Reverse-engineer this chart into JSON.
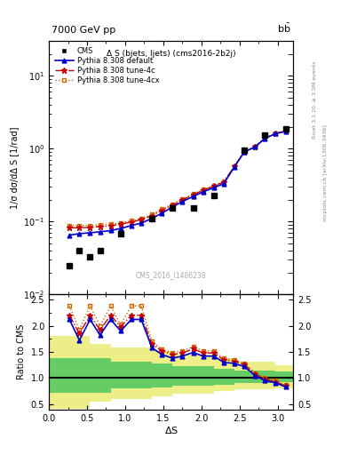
{
  "title_top": "7000 GeV pp",
  "title_top_right": "b$\\bar{b}$",
  "plot_title": "Δ S (bjets, ljets) (cms2016-2b2j)",
  "ylabel_main": "1/σ dσ/dΔ S [1/rad]",
  "xlabel": "ΔS",
  "ylabel_ratio": "Ratio to CMS",
  "right_label": "Rivet 3.1.10, ≥ 3.5M events",
  "right_label2": "mcplots.cern.ch [arXiv:1306.3436]",
  "watermark": "CMS_2016_I1486238",
  "cms_x": [
    0.27,
    0.4,
    0.54,
    0.67,
    0.94,
    1.35,
    1.62,
    1.89,
    2.16,
    2.56,
    2.83,
    3.1
  ],
  "cms_y": [
    0.025,
    0.04,
    0.033,
    0.04,
    0.068,
    0.11,
    0.155,
    0.155,
    0.23,
    0.95,
    1.55,
    1.85
  ],
  "default_x": [
    0.27,
    0.4,
    0.54,
    0.67,
    0.81,
    0.94,
    1.08,
    1.21,
    1.35,
    1.48,
    1.62,
    1.75,
    1.89,
    2.02,
    2.16,
    2.29,
    2.43,
    2.56,
    2.7,
    2.83,
    2.97,
    3.1
  ],
  "default_y": [
    0.065,
    0.068,
    0.07,
    0.072,
    0.075,
    0.08,
    0.088,
    0.095,
    0.11,
    0.13,
    0.158,
    0.188,
    0.22,
    0.255,
    0.29,
    0.33,
    0.56,
    0.9,
    1.05,
    1.38,
    1.6,
    1.72
  ],
  "tune4c_x": [
    0.27,
    0.4,
    0.54,
    0.67,
    0.81,
    0.94,
    1.08,
    1.21,
    1.35,
    1.48,
    1.62,
    1.75,
    1.89,
    2.02,
    2.16,
    2.29,
    2.43,
    2.56,
    2.7,
    2.83,
    2.97,
    3.1
  ],
  "tune4c_y": [
    0.082,
    0.082,
    0.083,
    0.085,
    0.087,
    0.092,
    0.098,
    0.106,
    0.12,
    0.142,
    0.168,
    0.198,
    0.232,
    0.268,
    0.305,
    0.348,
    0.57,
    0.91,
    1.06,
    1.39,
    1.61,
    1.74
  ],
  "tune4cx_x": [
    0.27,
    0.4,
    0.54,
    0.67,
    0.81,
    0.94,
    1.08,
    1.21,
    1.35,
    1.48,
    1.62,
    1.75,
    1.89,
    2.02,
    2.16,
    2.29,
    2.43,
    2.56,
    2.7,
    2.83,
    2.97,
    3.1
  ],
  "tune4cx_y": [
    0.088,
    0.088,
    0.088,
    0.09,
    0.092,
    0.096,
    0.102,
    0.11,
    0.125,
    0.147,
    0.173,
    0.203,
    0.237,
    0.273,
    0.31,
    0.353,
    0.573,
    0.915,
    1.065,
    1.4,
    1.62,
    1.75
  ],
  "ratio_default_x": [
    0.27,
    0.4,
    0.54,
    0.67,
    0.81,
    0.94,
    1.08,
    1.21,
    1.35,
    1.48,
    1.62,
    1.75,
    1.89,
    2.02,
    2.16,
    2.29,
    2.43,
    2.56,
    2.7,
    2.83,
    2.97,
    3.1
  ],
  "ratio_default_y": [
    2.12,
    1.72,
    2.12,
    1.82,
    2.12,
    1.9,
    2.12,
    2.12,
    1.58,
    1.45,
    1.38,
    1.42,
    1.49,
    1.42,
    1.42,
    1.3,
    1.28,
    1.22,
    1.05,
    0.95,
    0.91,
    0.83
  ],
  "ratio_tune4c_x": [
    0.27,
    0.4,
    0.54,
    0.67,
    0.81,
    0.94,
    1.08,
    1.21,
    1.35,
    1.48,
    1.62,
    1.75,
    1.89,
    2.02,
    2.16,
    2.29,
    2.43,
    2.56,
    2.7,
    2.83,
    2.97,
    3.1
  ],
  "ratio_tune4c_y": [
    2.2,
    1.85,
    2.2,
    1.92,
    2.2,
    1.98,
    2.2,
    2.2,
    1.65,
    1.52,
    1.45,
    1.48,
    1.56,
    1.48,
    1.48,
    1.35,
    1.32,
    1.26,
    1.08,
    0.98,
    0.93,
    0.85
  ],
  "ratio_tune4cx_x": [
    0.27,
    0.4,
    0.54,
    0.67,
    0.81,
    0.94,
    1.08,
    1.21,
    1.35,
    1.48,
    1.62,
    1.75,
    1.89,
    2.02,
    2.16,
    2.29,
    2.43,
    2.56,
    2.7,
    2.83,
    2.97,
    3.1
  ],
  "ratio_tune4cx_y": [
    2.38,
    1.92,
    2.38,
    2.0,
    2.38,
    2.02,
    2.38,
    2.38,
    1.7,
    1.55,
    1.48,
    1.52,
    1.6,
    1.52,
    1.52,
    1.38,
    1.35,
    1.28,
    1.1,
    1.0,
    0.95,
    0.87
  ],
  "green_band_x": [
    0.0,
    0.27,
    0.54,
    0.81,
    1.35,
    1.62,
    2.16,
    2.43,
    2.97,
    3.2
  ],
  "green_band_lo": [
    0.72,
    0.72,
    0.72,
    0.8,
    0.82,
    0.85,
    0.88,
    0.9,
    0.92,
    0.95
  ],
  "green_band_hi": [
    1.38,
    1.38,
    1.38,
    1.32,
    1.28,
    1.22,
    1.18,
    1.15,
    1.12,
    1.1
  ],
  "yellow_band_x": [
    0.0,
    0.27,
    0.54,
    0.81,
    1.35,
    1.62,
    2.16,
    2.43,
    2.97,
    3.2
  ],
  "yellow_band_lo": [
    0.42,
    0.42,
    0.55,
    0.6,
    0.65,
    0.7,
    0.75,
    0.78,
    0.8,
    0.82
  ],
  "yellow_band_hi": [
    1.8,
    1.8,
    1.65,
    1.58,
    1.52,
    1.45,
    1.38,
    1.32,
    1.25,
    1.22
  ],
  "color_default": "#0000cc",
  "color_tune4c": "#cc0000",
  "color_tune4cx": "#cc6600",
  "color_cms": "#000000",
  "color_green": "#66cc66",
  "color_yellow": "#eeee88",
  "xlim": [
    0.0,
    3.2
  ],
  "ylim_main": [
    0.01,
    30.0
  ],
  "ylim_ratio": [
    0.4,
    2.6
  ]
}
